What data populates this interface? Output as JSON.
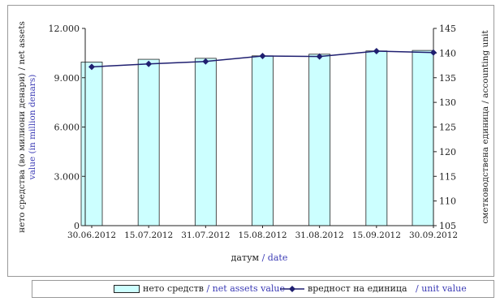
{
  "chart_data": {
    "type": "bar",
    "categories": [
      "30.06.2012",
      "15.07.2012",
      "31.07.2012",
      "15.08.2012",
      "31.08.2012",
      "15.09.2012",
      "30.09.2012"
    ],
    "series": [
      {
        "name": "нето средств / net assets value",
        "type": "bar",
        "axis": "left",
        "values": [
          9950,
          10120,
          10180,
          10330,
          10430,
          10630,
          10660
        ]
      },
      {
        "name": "вредност на единица / unit value",
        "type": "line",
        "axis": "right",
        "values": [
          137.2,
          137.8,
          138.3,
          139.4,
          139.3,
          140.4,
          140.1
        ]
      }
    ],
    "xlabel": {
      "main": "датум",
      "en": "/ date"
    },
    "ylabel_left": {
      "line1": "нето средства (во милиони денари) / net assets",
      "line2": "value (in million denars)"
    },
    "ylabel_right": "сметководствена единица / accounting unit",
    "ylim_left": [
      0,
      12000
    ],
    "yticks_left": [
      "0",
      "3.000",
      "6.000",
      "9.000",
      "12.000"
    ],
    "ylim_right": [
      105,
      145
    ],
    "yticks_right": [
      "105",
      "110",
      "115",
      "120",
      "125",
      "130",
      "135",
      "140",
      "145"
    ],
    "grid": false,
    "legend_position": "bottom",
    "colors": {
      "bar_fill": "#ccffff",
      "bar_stroke": "#222222",
      "line": "#1f1f70",
      "english_text": "#3b3bb5"
    }
  },
  "legend": {
    "bar_label": "нето средств",
    "bar_label_en": "/ net assets value",
    "line_label": "вредност на единица",
    "line_label_en": "/ unit value"
  }
}
